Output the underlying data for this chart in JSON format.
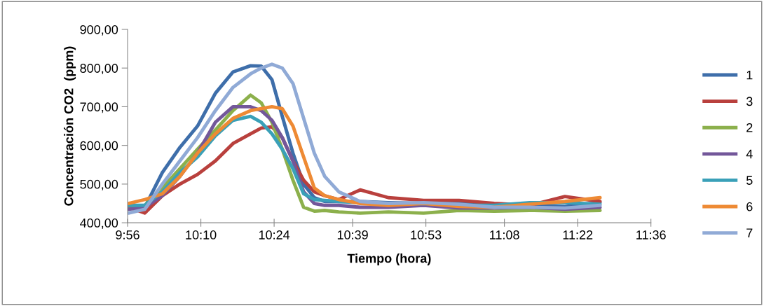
{
  "chart_data": {
    "type": "line",
    "xlabel": "Tiempo (hora)",
    "ylabel": "Concentración CO2  (ppm)",
    "x": [
      9.936,
      9.988,
      10.044,
      10.1,
      10.156,
      10.213,
      10.269,
      10.325,
      10.359,
      10.393,
      10.426,
      10.46,
      10.494,
      10.528,
      10.561,
      10.606,
      10.674,
      10.764,
      10.876,
      10.989,
      11.101,
      11.214,
      11.326,
      11.438
    ],
    "xlim": [
      9.9333,
      11.6
    ],
    "xticks": [
      {
        "value": 9.9333,
        "label": "9:56"
      },
      {
        "value": 10.1667,
        "label": "10:10"
      },
      {
        "value": 10.4,
        "label": "10:24"
      },
      {
        "value": 10.65,
        "label": "10:39"
      },
      {
        "value": 10.8833,
        "label": "10:53"
      },
      {
        "value": 11.1333,
        "label": "11:08"
      },
      {
        "value": 11.3667,
        "label": "11:22"
      },
      {
        "value": 11.6,
        "label": "11:36"
      }
    ],
    "ylim": [
      400,
      900
    ],
    "yticks": [
      {
        "value": 400,
        "label": "400,00"
      },
      {
        "value": 500,
        "label": "500,00"
      },
      {
        "value": 600,
        "label": "600,00"
      },
      {
        "value": 700,
        "label": "700,00"
      },
      {
        "value": 800,
        "label": "800,00"
      },
      {
        "value": 900,
        "label": "900,00"
      }
    ],
    "grid": false,
    "legend": "right",
    "marker": "none",
    "line_style": "solid",
    "series": [
      {
        "name": "1",
        "color": "#3e6eaa",
        "values": [
          440,
          440,
          530,
          595,
          650,
          735,
          790,
          806,
          805,
          770,
          675,
          580,
          500,
          465,
          455,
          455,
          455,
          452,
          450,
          450,
          448,
          445,
          442,
          452
        ]
      },
      {
        "name": "3",
        "color": "#b9403d",
        "values": [
          440,
          425,
          470,
          500,
          525,
          560,
          605,
          630,
          645,
          648,
          620,
          560,
          510,
          480,
          470,
          460,
          485,
          465,
          458,
          458,
          450,
          445,
          468,
          455
        ]
      },
      {
        "name": "2",
        "color": "#8cb04c",
        "values": [
          435,
          445,
          490,
          540,
          590,
          640,
          690,
          730,
          710,
          660,
          590,
          510,
          440,
          430,
          432,
          428,
          425,
          428,
          425,
          432,
          430,
          432,
          430,
          432
        ]
      },
      {
        "name": "4",
        "color": "#73579a",
        "values": [
          435,
          440,
          470,
          520,
          580,
          660,
          700,
          700,
          690,
          665,
          620,
          560,
          480,
          450,
          445,
          445,
          440,
          440,
          445,
          438,
          438,
          440,
          435,
          440
        ]
      },
      {
        "name": "5",
        "color": "#3aa0b8",
        "values": [
          445,
          445,
          480,
          530,
          570,
          625,
          665,
          675,
          660,
          630,
          590,
          540,
          475,
          460,
          458,
          455,
          452,
          448,
          450,
          445,
          445,
          452,
          452,
          448
        ]
      },
      {
        "name": "6",
        "color": "#ee8a34",
        "values": [
          450,
          460,
          475,
          520,
          580,
          630,
          670,
          690,
          695,
          700,
          695,
          650,
          570,
          490,
          470,
          460,
          450,
          445,
          450,
          442,
          440,
          448,
          455,
          465
        ]
      },
      {
        "name": "7",
        "color": "#90aad6",
        "values": [
          425,
          435,
          500,
          560,
          620,
          690,
          750,
          785,
          800,
          810,
          800,
          760,
          670,
          580,
          520,
          480,
          455,
          450,
          452,
          448,
          440,
          440,
          438,
          445
        ]
      }
    ]
  }
}
